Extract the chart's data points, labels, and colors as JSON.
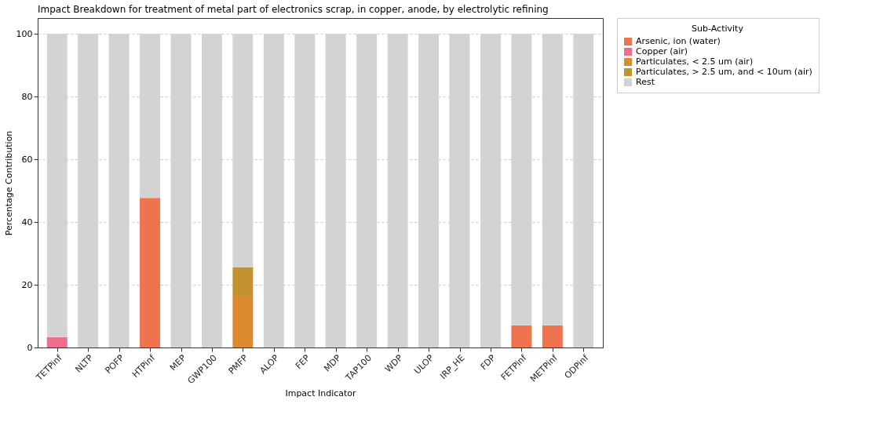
{
  "chart_data": {
    "type": "bar",
    "title": "Impact Breakdown for treatment of metal part of electronics scrap, in copper, anode, by electrolytic refining",
    "xlabel": "Impact Indicator",
    "ylabel": "Percentage Contribution",
    "legend_title": "Sub-Activity",
    "categories": [
      "TETPinf",
      "NLTP",
      "POFP",
      "HTPinf",
      "MEP",
      "GWP100",
      "PMFP",
      "ALOP",
      "FEP",
      "MDP",
      "TAP100",
      "WDP",
      "ULOP",
      "IRP_HE",
      "FDP",
      "FETPinf",
      "METPinf",
      "ODPinf"
    ],
    "stacked": true,
    "series": [
      {
        "name": "Arsenic, ion (water)",
        "color": "#f07350",
        "values": [
          0,
          0,
          0,
          47.7,
          0,
          0,
          0,
          0,
          0,
          0,
          0,
          0,
          0,
          0,
          0,
          7,
          7,
          0
        ]
      },
      {
        "name": "Copper (air)",
        "color": "#f06d8c",
        "values": [
          3.3,
          0,
          0,
          0,
          0,
          0,
          0,
          0,
          0,
          0,
          0,
          0,
          0,
          0,
          0,
          0,
          0,
          0
        ]
      },
      {
        "name": "Particulates, < 2.5 um (air)",
        "color": "#dc8a30",
        "values": [
          0,
          0,
          0,
          0,
          0,
          0,
          16,
          0,
          0,
          0,
          0,
          0,
          0,
          0,
          0,
          0,
          0,
          0
        ]
      },
      {
        "name": "Particulates, > 2.5 um, and < 10um (air)",
        "color": "#c4922e",
        "values": [
          0,
          0,
          0,
          0,
          0,
          0,
          9.6,
          0,
          0,
          0,
          0,
          0,
          0,
          0,
          0,
          0,
          0,
          0
        ]
      },
      {
        "name": "Rest",
        "color": "#d3d3d3",
        "values": [
          96.7,
          100,
          100,
          52.3,
          100,
          100,
          74.4,
          100,
          100,
          100,
          100,
          100,
          100,
          100,
          100,
          93,
          93,
          100
        ]
      }
    ],
    "ylim": [
      0,
      105
    ],
    "yticks": [
      0,
      20,
      40,
      60,
      80,
      100
    ],
    "grid": "y",
    "legend": "top right"
  }
}
